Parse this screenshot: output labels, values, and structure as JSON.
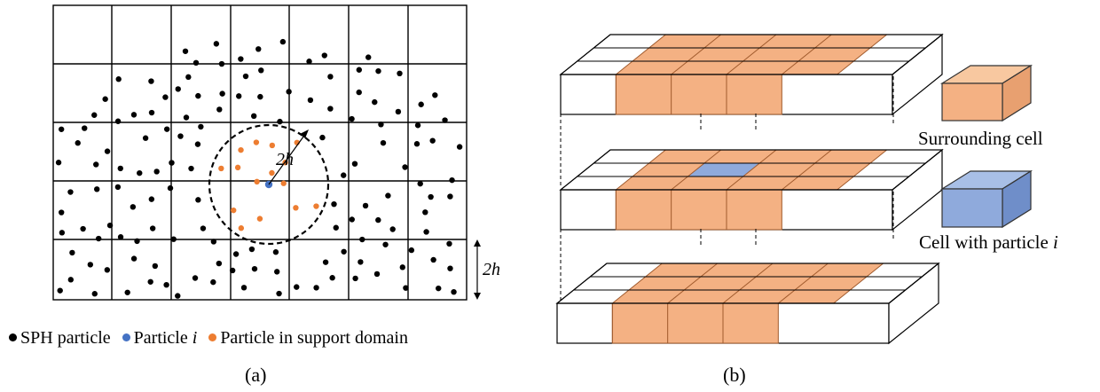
{
  "panel_a": {
    "caption": "(a)",
    "radius_label": "2h",
    "cell_size_label": "2h",
    "legend": [
      {
        "text": "SPH particle",
        "color": "#000000"
      },
      {
        "text": "Particle ",
        "italic": "i",
        "color": "#4472c4"
      },
      {
        "text": "Particle in support domain",
        "color": "#ed7d31"
      }
    ]
  },
  "panel_b": {
    "caption": "(b)",
    "legend": [
      {
        "text": "Surrounding cell",
        "color": "#f4b183"
      },
      {
        "text": "Cell with particle ",
        "italic": "i",
        "color": "#8faadc"
      }
    ]
  },
  "colors": {
    "sph": "#000000",
    "particle_i": "#4472c4",
    "support": "#ed7d31",
    "surround_fill": "#f4b183",
    "center_fill": "#8faadc"
  }
}
